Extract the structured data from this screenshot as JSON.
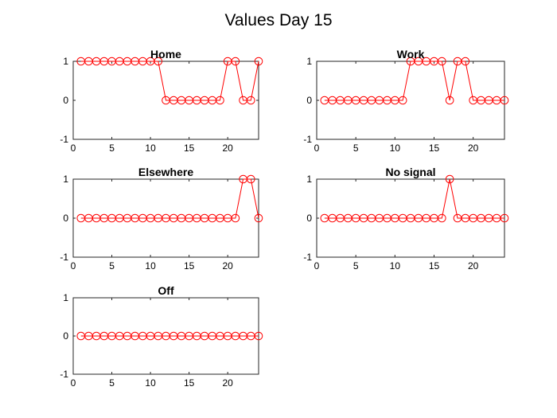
{
  "figure": {
    "title": "Values Day 15",
    "line_color": "#ff0000"
  },
  "chart_data": [
    {
      "type": "line",
      "title": "Home",
      "x": [
        1,
        2,
        3,
        4,
        5,
        6,
        7,
        8,
        9,
        10,
        11,
        12,
        13,
        14,
        15,
        16,
        17,
        18,
        19,
        20,
        21,
        22,
        23,
        24
      ],
      "values": [
        1,
        1,
        1,
        1,
        1,
        1,
        1,
        1,
        1,
        1,
        1,
        0,
        0,
        0,
        0,
        0,
        0,
        0,
        0,
        1,
        1,
        0,
        0,
        1
      ],
      "xlim": [
        0,
        24
      ],
      "ylim": [
        -1,
        1
      ],
      "xticks": [
        0,
        5,
        10,
        15,
        20
      ],
      "yticks": [
        -1,
        0,
        1
      ],
      "grid": true,
      "marker": "circle"
    },
    {
      "type": "line",
      "title": "Work",
      "x": [
        1,
        2,
        3,
        4,
        5,
        6,
        7,
        8,
        9,
        10,
        11,
        12,
        13,
        14,
        15,
        16,
        17,
        18,
        19,
        20,
        21,
        22,
        23,
        24
      ],
      "values": [
        0,
        0,
        0,
        0,
        0,
        0,
        0,
        0,
        0,
        0,
        0,
        1,
        1,
        1,
        1,
        1,
        0,
        1,
        1,
        0,
        0,
        0,
        0,
        0
      ],
      "xlim": [
        0,
        24
      ],
      "ylim": [
        -1,
        1
      ],
      "xticks": [
        0,
        5,
        10,
        15,
        20
      ],
      "yticks": [
        -1,
        0,
        1
      ],
      "grid": true,
      "marker": "circle"
    },
    {
      "type": "line",
      "title": "Elsewhere",
      "x": [
        1,
        2,
        3,
        4,
        5,
        6,
        7,
        8,
        9,
        10,
        11,
        12,
        13,
        14,
        15,
        16,
        17,
        18,
        19,
        20,
        21,
        22,
        23,
        24
      ],
      "values": [
        0,
        0,
        0,
        0,
        0,
        0,
        0,
        0,
        0,
        0,
        0,
        0,
        0,
        0,
        0,
        0,
        0,
        0,
        0,
        0,
        0,
        1,
        1,
        0
      ],
      "xlim": [
        0,
        24
      ],
      "ylim": [
        -1,
        1
      ],
      "xticks": [
        0,
        5,
        10,
        15,
        20
      ],
      "yticks": [
        -1,
        0,
        1
      ],
      "grid": true,
      "marker": "circle"
    },
    {
      "type": "line",
      "title": "No signal",
      "x": [
        1,
        2,
        3,
        4,
        5,
        6,
        7,
        8,
        9,
        10,
        11,
        12,
        13,
        14,
        15,
        16,
        17,
        18,
        19,
        20,
        21,
        22,
        23,
        24
      ],
      "values": [
        0,
        0,
        0,
        0,
        0,
        0,
        0,
        0,
        0,
        0,
        0,
        0,
        0,
        0,
        0,
        0,
        1,
        0,
        0,
        0,
        0,
        0,
        0,
        0
      ],
      "xlim": [
        0,
        24
      ],
      "ylim": [
        -1,
        1
      ],
      "xticks": [
        0,
        5,
        10,
        15,
        20
      ],
      "yticks": [
        -1,
        0,
        1
      ],
      "grid": true,
      "marker": "circle"
    },
    {
      "type": "line",
      "title": "Off",
      "x": [
        1,
        2,
        3,
        4,
        5,
        6,
        7,
        8,
        9,
        10,
        11,
        12,
        13,
        14,
        15,
        16,
        17,
        18,
        19,
        20,
        21,
        22,
        23,
        24
      ],
      "values": [
        0,
        0,
        0,
        0,
        0,
        0,
        0,
        0,
        0,
        0,
        0,
        0,
        0,
        0,
        0,
        0,
        0,
        0,
        0,
        0,
        0,
        0,
        0,
        0
      ],
      "xlim": [
        0,
        24
      ],
      "ylim": [
        -1,
        1
      ],
      "xticks": [
        0,
        5,
        10,
        15,
        20
      ],
      "yticks": [
        -1,
        0,
        1
      ],
      "grid": true,
      "marker": "circle"
    }
  ]
}
